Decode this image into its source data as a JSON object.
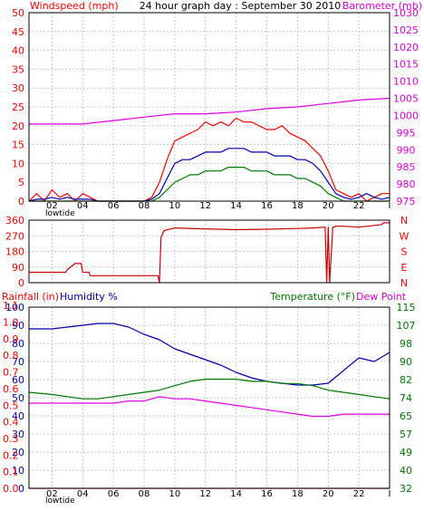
{
  "colors": {
    "background": "#ffffff",
    "frame": "#000000",
    "grid": "#c8c8c8",
    "red": "#ff0000",
    "darkred": "#cc0000",
    "blue": "#0000aa",
    "green": "#007700",
    "magenta": "#dd00dd"
  },
  "chart_data": [
    {
      "id": "wind",
      "type": "line",
      "title": "24 hour graph day : September 30 2010",
      "left_label": "Windspeed (mph)",
      "right_label": "Barometer (mb)",
      "xlim": [
        0.5,
        24
      ],
      "x_ticks": [
        "02",
        "04",
        "06",
        "08",
        "10",
        "12",
        "14",
        "16",
        "18",
        "20",
        "22"
      ],
      "x_note": "lowtide",
      "grid": true,
      "left_axis": {
        "ylim": [
          0,
          50
        ],
        "ticks": [
          "0",
          "5",
          "10",
          "15",
          "20",
          "25",
          "30",
          "35",
          "40",
          "45",
          "50"
        ]
      },
      "right_axis": {
        "ylim": [
          975,
          1030
        ],
        "ticks": [
          "975",
          "980",
          "985",
          "990",
          "995",
          "1000",
          "1005",
          "1010",
          "1015",
          "1020",
          "1025",
          "1030"
        ]
      },
      "series": [
        {
          "color": "red",
          "axis": "left",
          "x": [
            0.5,
            1,
            1.5,
            2,
            2.5,
            3,
            3.5,
            4,
            4.5,
            5,
            5.5,
            6,
            6.5,
            7,
            7.5,
            8,
            8.5,
            9,
            9.5,
            10,
            10.5,
            11,
            11.5,
            12,
            12.5,
            13,
            13.5,
            14,
            14.5,
            15,
            15.5,
            16,
            16.5,
            17,
            17.5,
            18,
            18.5,
            19,
            19.5,
            20,
            20.5,
            21,
            21.5,
            22,
            22.5,
            23,
            23.5,
            24
          ],
          "values": [
            0,
            2,
            0,
            3,
            1,
            2,
            0,
            2,
            1,
            0,
            0,
            0,
            0,
            0,
            0,
            0,
            1,
            5,
            11,
            16,
            17,
            18,
            19,
            21,
            20,
            21,
            20,
            22,
            21,
            21,
            20,
            19,
            19,
            20,
            18,
            17,
            16,
            14,
            12,
            8,
            3,
            2,
            1,
            2,
            0,
            1,
            2,
            2
          ]
        },
        {
          "color": "blue",
          "axis": "left",
          "x": [
            0.5,
            1,
            1.5,
            2,
            2.5,
            3,
            3.5,
            4,
            4.5,
            5,
            5.5,
            6,
            6.5,
            7,
            7.5,
            8,
            8.5,
            9,
            9.5,
            10,
            10.5,
            11,
            11.5,
            12,
            12.5,
            13,
            13.5,
            14,
            14.5,
            15,
            15.5,
            16,
            16.5,
            17,
            17.5,
            18,
            18.5,
            19,
            19.5,
            20,
            20.5,
            21,
            21.5,
            22,
            22.5,
            23,
            23.5,
            24
          ],
          "values": [
            0,
            0.5,
            0.5,
            1,
            0.5,
            1,
            0.5,
            0.5,
            0.5,
            0,
            0,
            0,
            0,
            0,
            0,
            0,
            0.5,
            2,
            6,
            10,
            11,
            11,
            12,
            13,
            13,
            13,
            14,
            14,
            14,
            13,
            13,
            13,
            12,
            12,
            12,
            11,
            11,
            10,
            8,
            5,
            2,
            1,
            0.5,
            1,
            2,
            1,
            0.5,
            1
          ]
        },
        {
          "color": "green",
          "axis": "left",
          "x": [
            0.5,
            1,
            1.5,
            2,
            2.5,
            3,
            3.5,
            4,
            4.5,
            5,
            5.5,
            6,
            6.5,
            7,
            7.5,
            8,
            8.5,
            9,
            9.5,
            10,
            10.5,
            11,
            11.5,
            12,
            12.5,
            13,
            13.5,
            14,
            14.5,
            15,
            15.5,
            16,
            16.5,
            17,
            17.5,
            18,
            18.5,
            19,
            19.5,
            20,
            20.5,
            21,
            21.5,
            22,
            22.5,
            23,
            23.5,
            24
          ],
          "values": [
            0,
            0,
            0,
            0,
            0,
            0,
            0,
            0,
            0,
            0,
            0,
            0,
            0,
            0,
            0,
            0,
            0,
            1,
            3,
            5,
            6,
            7,
            7,
            8,
            8,
            8,
            9,
            9,
            9,
            8,
            8,
            8,
            7,
            7,
            7,
            6,
            6,
            5,
            4,
            2,
            1,
            0,
            0,
            0,
            0,
            0,
            0,
            0
          ]
        },
        {
          "color": "magenta",
          "axis": "right",
          "x": [
            0.5,
            2,
            4,
            6,
            8,
            10,
            12,
            14,
            16,
            18,
            20,
            22,
            24
          ],
          "values": [
            997.5,
            997.5,
            997.5,
            998.5,
            999.5,
            1000.5,
            1000.5,
            1001,
            1002,
            1002.5,
            1003.5,
            1004.5,
            1005
          ]
        }
      ]
    },
    {
      "id": "direction",
      "type": "line",
      "xlim": [
        0.5,
        24
      ],
      "grid": true,
      "left_axis": {
        "ylim": [
          0,
          360
        ],
        "ticks": [
          "0",
          "90",
          "180",
          "270",
          "360"
        ]
      },
      "right_axis": {
        "ylim": [
          0,
          360
        ],
        "ticks": [
          "N",
          "E",
          "S",
          "W",
          "N"
        ]
      },
      "series": [
        {
          "color": "darkred",
          "axis": "left",
          "x": [
            0.5,
            2.9,
            3,
            3.5,
            3.9,
            4,
            4.4,
            4.5,
            8.9,
            9,
            9.1,
            9.3,
            10,
            12,
            14,
            16,
            18,
            19,
            19.8,
            19.9,
            20,
            20.1,
            20.3,
            20.4,
            20.5,
            21,
            22,
            23,
            23.5,
            23.6,
            24
          ],
          "values": [
            60,
            60,
            75,
            110,
            110,
            60,
            60,
            40,
            40,
            0,
            260,
            300,
            315,
            310,
            305,
            308,
            312,
            315,
            320,
            0,
            320,
            0,
            320,
            320,
            325,
            325,
            320,
            330,
            335,
            345,
            345
          ]
        }
      ]
    },
    {
      "id": "rain",
      "type": "line",
      "left_label": "Rainfall (in)",
      "left_label2": "Humidity %",
      "right_label": "Temperature (°F)",
      "right_label2": "Dew Point",
      "xlim": [
        0.5,
        24
      ],
      "x_ticks": [
        "02",
        "04",
        "06",
        "08",
        "10",
        "12",
        "14",
        "16",
        "18",
        "20",
        "22"
      ],
      "x_note": "lowtide",
      "grid": true,
      "left_axis": {
        "ylim": [
          0,
          100
        ],
        "ticks": [
          "0",
          "10",
          "20",
          "30",
          "40",
          "50",
          "60",
          "70",
          "80",
          "90",
          "100"
        ]
      },
      "left_axis2": {
        "ticks": [
          "0.0",
          "0.1",
          "0.2",
          "0.3",
          "0.4",
          "0.5",
          "0.6",
          "0.7",
          "0.8",
          "0.9",
          "1.0",
          "1.1"
        ]
      },
      "right_axis": {
        "ylim": [
          32,
          115
        ],
        "ticks": [
          "32",
          "40",
          "49",
          "57",
          "65",
          "74",
          "82",
          "90",
          "98",
          "107",
          "115"
        ]
      },
      "series": [
        {
          "color": "blue",
          "axis": "left",
          "x": [
            0.5,
            2,
            3,
            4,
            5,
            6,
            7,
            8,
            9,
            10,
            11,
            12,
            13,
            14,
            15,
            16,
            17,
            18,
            19,
            20,
            21,
            22,
            23,
            24
          ],
          "values": [
            88,
            88,
            89,
            90,
            91,
            91,
            89,
            85,
            82,
            77,
            74,
            71,
            68,
            64,
            61,
            59,
            58,
            57,
            57,
            58,
            65,
            72,
            70,
            75
          ]
        },
        {
          "color": "green",
          "axis": "right",
          "x": [
            0.5,
            2,
            3,
            4,
            5,
            6,
            7,
            8,
            9,
            10,
            11,
            12,
            13,
            14,
            15,
            16,
            17,
            18,
            19,
            20,
            21,
            22,
            23,
            24
          ],
          "values": [
            76,
            75,
            74,
            73,
            73,
            74,
            75,
            76,
            77,
            79,
            81,
            82,
            82,
            82,
            81,
            81,
            80,
            80,
            79,
            77,
            76,
            75,
            74,
            73
          ]
        },
        {
          "color": "magenta",
          "axis": "right",
          "x": [
            0.5,
            2,
            3,
            4,
            5,
            6,
            7,
            8,
            9,
            10,
            11,
            12,
            13,
            14,
            15,
            16,
            17,
            18,
            19,
            20,
            21,
            22,
            23,
            24
          ],
          "values": [
            71,
            71,
            71,
            71,
            71,
            71,
            72,
            72,
            74,
            73,
            73,
            72,
            71,
            70,
            69,
            68,
            67,
            66,
            65,
            65,
            66,
            66,
            66,
            66
          ]
        },
        {
          "color": "red",
          "axis": "left",
          "x": [
            0.5,
            24
          ],
          "values": [
            0,
            0
          ]
        }
      ]
    }
  ]
}
